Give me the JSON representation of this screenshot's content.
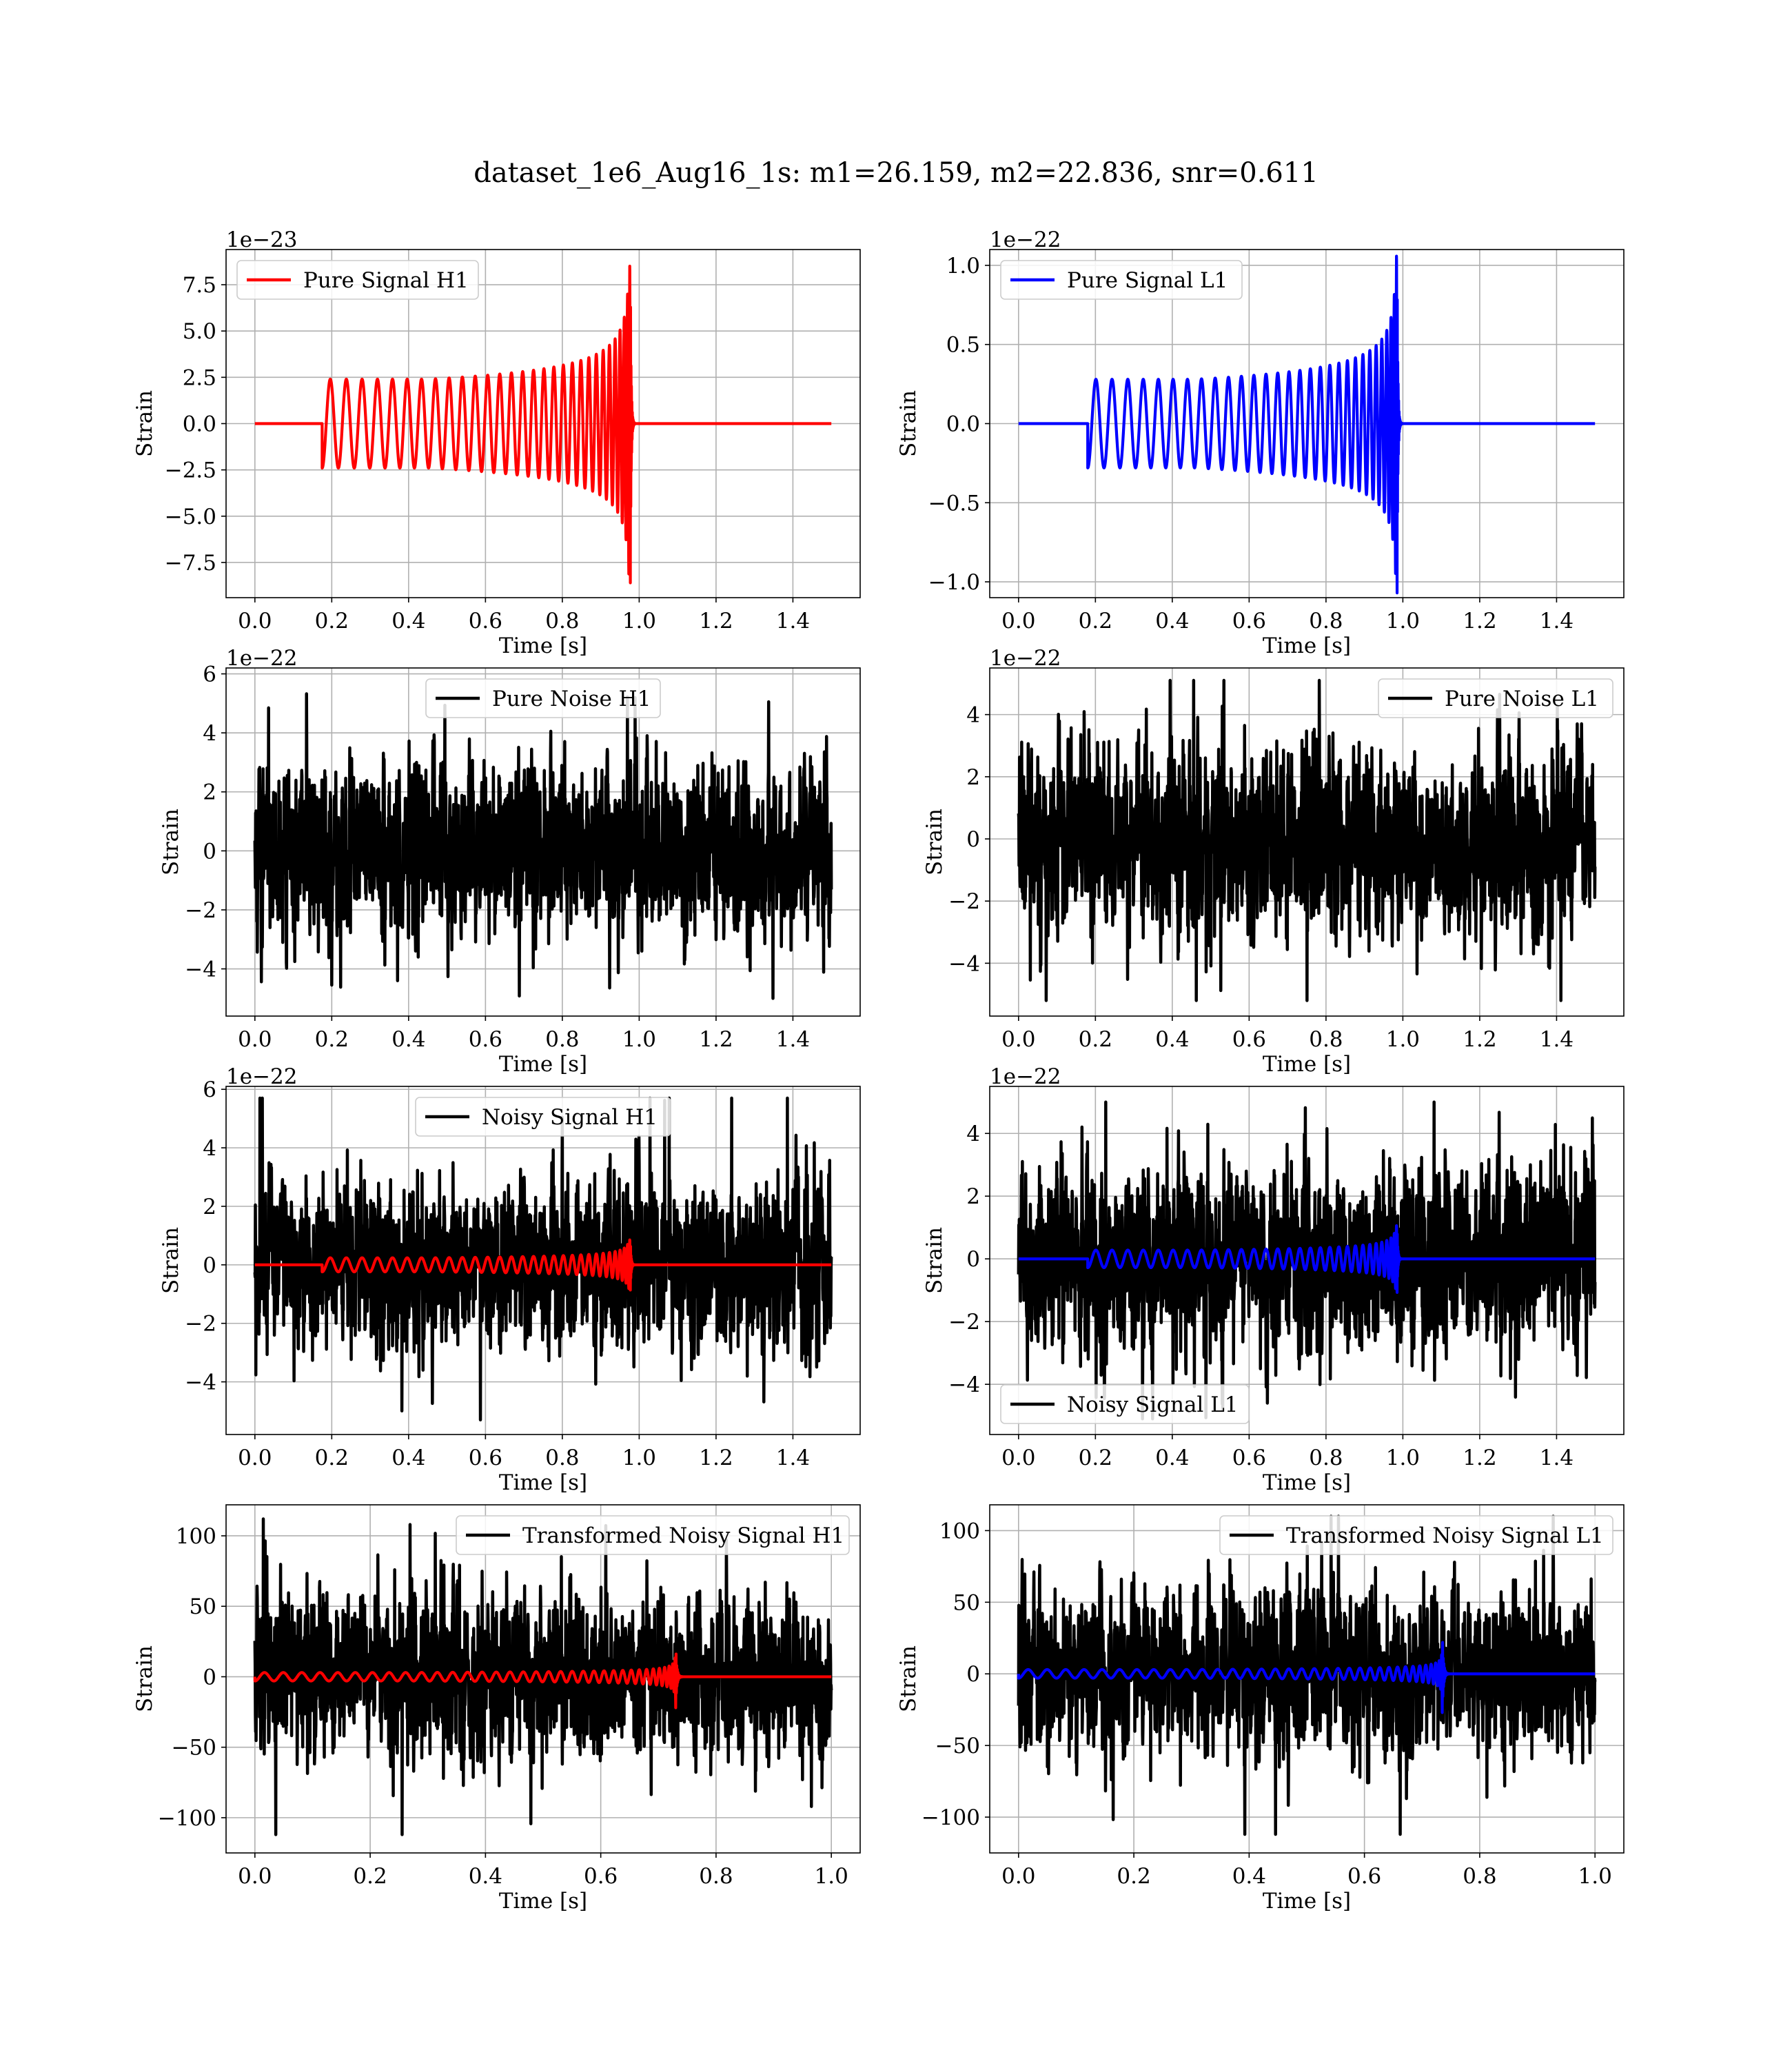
{
  "figure": {
    "title": "dataset_1e6_Aug16_1s: m1=26.159, m2=22.836, snr=0.611"
  },
  "colors": {
    "H1": "#ff0000",
    "L1": "#0000ff",
    "noise": "#000000",
    "grid": "#b0b0b0"
  },
  "chart_data": [
    {
      "id": "pure-signal-h1",
      "type": "line",
      "grid": true,
      "xlabel": "Time [s]",
      "ylabel": "Strain",
      "offset_text": "1e−23",
      "xlim": [
        -0.075,
        1.575
      ],
      "ylim": [
        -9.4,
        9.4
      ],
      "xticks": [
        0.0,
        0.2,
        0.4,
        0.6,
        0.8,
        1.0,
        1.2,
        1.4
      ],
      "xtick_labels": [
        "0.0",
        "0.2",
        "0.4",
        "0.6",
        "0.8",
        "1.0",
        "1.2",
        "1.4"
      ],
      "yticks": [
        7.5,
        5.0,
        2.5,
        0.0,
        -2.5,
        -5.0,
        -7.5
      ],
      "ytick_labels": [
        "7.5",
        "5.0",
        "2.5",
        "0.0",
        "−2.5",
        "−5.0",
        "−7.5"
      ],
      "legend": {
        "placement": "upper left"
      },
      "series": [
        {
          "name": "Pure Signal H1",
          "kind": "chirp",
          "color": "#ff0000",
          "t_start": 0.175,
          "t_merger": 0.977,
          "t_end": 1.5,
          "initial_amplitude": 2.4,
          "peak_amplitude": 8.6,
          "n_cycles": 30
        }
      ]
    },
    {
      "id": "pure-signal-l1",
      "type": "line",
      "grid": true,
      "xlabel": "Time [s]",
      "ylabel": "Strain",
      "offset_text": "1e−22",
      "xlim": [
        -0.075,
        1.575
      ],
      "ylim": [
        -1.1,
        1.1
      ],
      "xticks": [
        0.0,
        0.2,
        0.4,
        0.6,
        0.8,
        1.0,
        1.2,
        1.4
      ],
      "xtick_labels": [
        "0.0",
        "0.2",
        "0.4",
        "0.6",
        "0.8",
        "1.0",
        "1.2",
        "1.4"
      ],
      "yticks": [
        1.0,
        0.5,
        0.0,
        -0.5,
        -1.0
      ],
      "ytick_labels": [
        "1.0",
        "0.5",
        "0.0",
        "−0.5",
        "−1.0"
      ],
      "legend": {
        "placement": "upper left"
      },
      "series": [
        {
          "name": "Pure Signal L1",
          "kind": "chirp",
          "color": "#0000ff",
          "t_start": 0.18,
          "t_merger": 0.985,
          "t_end": 1.5,
          "initial_amplitude": 0.28,
          "peak_amplitude": 1.07,
          "n_cycles": 30
        }
      ]
    },
    {
      "id": "pure-noise-h1",
      "type": "line",
      "grid": true,
      "xlabel": "Time [s]",
      "ylabel": "Strain",
      "offset_text": "1e−22",
      "xlim": [
        -0.075,
        1.575
      ],
      "ylim": [
        -5.6,
        6.2
      ],
      "xticks": [
        0.0,
        0.2,
        0.4,
        0.6,
        0.8,
        1.0,
        1.2,
        1.4
      ],
      "xtick_labels": [
        "0.0",
        "0.2",
        "0.4",
        "0.6",
        "0.8",
        "1.0",
        "1.2",
        "1.4"
      ],
      "yticks": [
        6,
        4,
        2,
        0,
        -2,
        -4
      ],
      "ytick_labels": [
        "6",
        "4",
        "2",
        "0",
        "−2",
        "−4"
      ],
      "legend": {
        "placement": "upper center"
      },
      "series": [
        {
          "name": "Pure Noise H1",
          "kind": "noise",
          "color": "#000000",
          "t_start": 0.0,
          "t_end": 1.5,
          "std": 1.6,
          "min": -5.0,
          "max": 5.8
        }
      ]
    },
    {
      "id": "pure-noise-l1",
      "type": "line",
      "grid": true,
      "xlabel": "Time [s]",
      "ylabel": "Strain",
      "offset_text": "1e−22",
      "xlim": [
        -0.075,
        1.575
      ],
      "ylim": [
        -5.7,
        5.5
      ],
      "xticks": [
        0.0,
        0.2,
        0.4,
        0.6,
        0.8,
        1.0,
        1.2,
        1.4
      ],
      "xtick_labels": [
        "0.0",
        "0.2",
        "0.4",
        "0.6",
        "0.8",
        "1.0",
        "1.2",
        "1.4"
      ],
      "yticks": [
        4,
        2,
        0,
        -2,
        -4
      ],
      "ytick_labels": [
        "4",
        "2",
        "0",
        "−2",
        "−4"
      ],
      "legend": {
        "placement": "upper right"
      },
      "series": [
        {
          "name": "Pure Noise L1",
          "kind": "noise",
          "color": "#000000",
          "t_start": 0.0,
          "t_end": 1.5,
          "std": 1.6,
          "min": -5.2,
          "max": 5.1
        }
      ]
    },
    {
      "id": "noisy-signal-h1",
      "type": "line",
      "grid": true,
      "xlabel": "Time [s]",
      "ylabel": "Strain",
      "offset_text": "1e−22",
      "xlim": [
        -0.075,
        1.575
      ],
      "ylim": [
        -5.8,
        6.1
      ],
      "xticks": [
        0.0,
        0.2,
        0.4,
        0.6,
        0.8,
        1.0,
        1.2,
        1.4
      ],
      "xtick_labels": [
        "0.0",
        "0.2",
        "0.4",
        "0.6",
        "0.8",
        "1.0",
        "1.2",
        "1.4"
      ],
      "yticks": [
        6,
        4,
        2,
        0,
        -2,
        -4
      ],
      "ytick_labels": [
        "6",
        "4",
        "2",
        "0",
        "−2",
        "−4"
      ],
      "legend": {
        "placement": "upper center"
      },
      "series": [
        {
          "name": "Noisy Signal H1",
          "kind": "noise",
          "color": "#000000",
          "t_start": 0.0,
          "t_end": 1.5,
          "std": 1.6,
          "min": -5.3,
          "max": 5.7
        },
        {
          "name": "",
          "kind": "chirp",
          "color": "#ff0000",
          "t_start": 0.175,
          "t_merger": 0.977,
          "t_end": 1.5,
          "initial_amplitude": 0.24,
          "peak_amplitude": 0.86,
          "n_cycles": 30
        }
      ]
    },
    {
      "id": "noisy-signal-l1",
      "type": "line",
      "grid": true,
      "xlabel": "Time [s]",
      "ylabel": "Strain",
      "offset_text": "1e−22",
      "xlim": [
        -0.075,
        1.575
      ],
      "ylim": [
        -5.6,
        5.5
      ],
      "xticks": [
        0.0,
        0.2,
        0.4,
        0.6,
        0.8,
        1.0,
        1.2,
        1.4
      ],
      "xtick_labels": [
        "0.0",
        "0.2",
        "0.4",
        "0.6",
        "0.8",
        "1.0",
        "1.2",
        "1.4"
      ],
      "yticks": [
        4,
        2,
        0,
        -2,
        -4
      ],
      "ytick_labels": [
        "4",
        "2",
        "0",
        "−2",
        "−4"
      ],
      "legend": {
        "placement": "lower left"
      },
      "series": [
        {
          "name": "Noisy Signal L1",
          "kind": "noise",
          "color": "#000000",
          "t_start": 0.0,
          "t_end": 1.5,
          "std": 1.6,
          "min": -5.1,
          "max": 5.0
        },
        {
          "name": "",
          "kind": "chirp",
          "color": "#0000ff",
          "t_start": 0.18,
          "t_merger": 0.985,
          "t_end": 1.5,
          "initial_amplitude": 0.28,
          "peak_amplitude": 1.07,
          "n_cycles": 30
        }
      ]
    },
    {
      "id": "transformed-noisy-signal-h1",
      "type": "line",
      "grid": true,
      "xlabel": "Time [s]",
      "ylabel": "Strain",
      "offset_text": "",
      "xlim": [
        -0.05,
        1.05
      ],
      "ylim": [
        -125,
        122
      ],
      "xticks": [
        0.0,
        0.2,
        0.4,
        0.6,
        0.8,
        1.0
      ],
      "xtick_labels": [
        "0.0",
        "0.2",
        "0.4",
        "0.6",
        "0.8",
        "1.0"
      ],
      "yticks": [
        100,
        50,
        0,
        -50,
        -100
      ],
      "ytick_labels": [
        "100",
        "50",
        "0",
        "−50",
        "−100"
      ],
      "legend": {
        "placement": "upper right"
      },
      "series": [
        {
          "name": "Transformed Noisy Signal H1",
          "kind": "noise",
          "color": "#000000",
          "t_start": 0.0,
          "t_end": 1.0,
          "std": 32,
          "min": -112,
          "max": 112
        },
        {
          "name": "",
          "kind": "chirp",
          "color": "#ff0000",
          "t_start": 0.0,
          "t_merger": 0.73,
          "t_end": 1.0,
          "initial_amplitude": 3,
          "peak_amplitude": 22,
          "n_cycles": 35
        }
      ]
    },
    {
      "id": "transformed-noisy-signal-l1",
      "type": "line",
      "grid": true,
      "xlabel": "Time [s]",
      "ylabel": "Strain",
      "offset_text": "",
      "xlim": [
        -0.05,
        1.05
      ],
      "ylim": [
        -125,
        118
      ],
      "xticks": [
        0.0,
        0.2,
        0.4,
        0.6,
        0.8,
        1.0
      ],
      "xtick_labels": [
        "0.0",
        "0.2",
        "0.4",
        "0.6",
        "0.8",
        "1.0"
      ],
      "yticks": [
        100,
        50,
        0,
        -50,
        -100
      ],
      "ytick_labels": [
        "100",
        "50",
        "0",
        "−50",
        "−100"
      ],
      "legend": {
        "placement": "upper right"
      },
      "series": [
        {
          "name": "Transformed Noisy Signal L1",
          "kind": "noise",
          "color": "#000000",
          "t_start": 0.0,
          "t_end": 1.0,
          "std": 32,
          "min": -112,
          "max": 110
        },
        {
          "name": "",
          "kind": "chirp",
          "color": "#0000ff",
          "t_start": 0.0,
          "t_merger": 0.735,
          "t_end": 1.0,
          "initial_amplitude": 3,
          "peak_amplitude": 30,
          "n_cycles": 35
        }
      ]
    }
  ]
}
